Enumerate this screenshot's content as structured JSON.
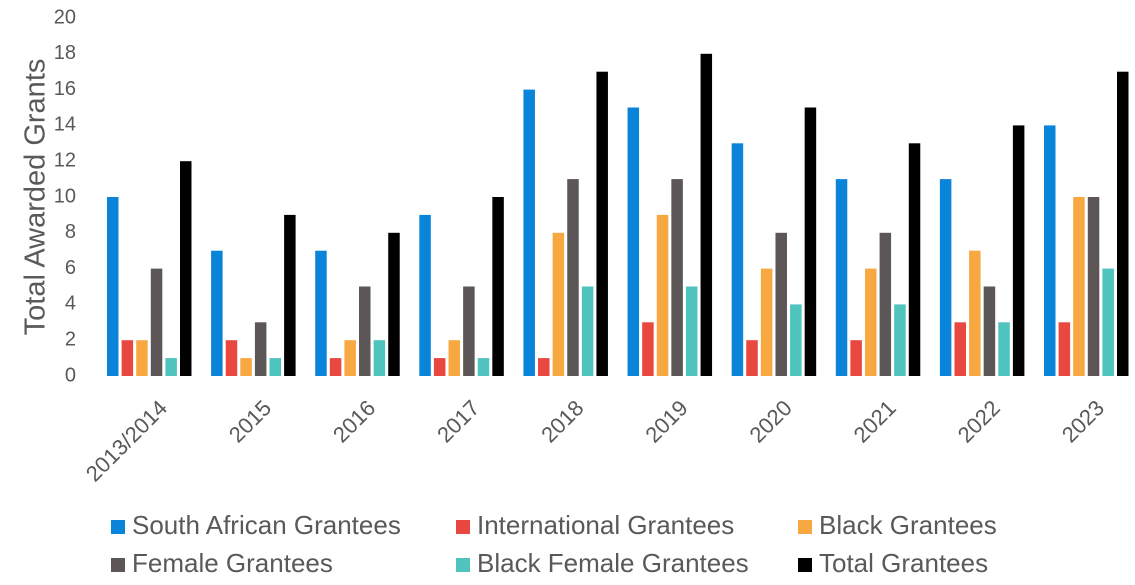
{
  "chart_data": {
    "type": "bar",
    "title": "",
    "xlabel": "",
    "ylabel": "Total Awarded Grants",
    "ylim": [
      0,
      20
    ],
    "yticks": [
      0,
      2,
      4,
      6,
      8,
      10,
      12,
      14,
      16,
      18,
      20
    ],
    "grid": false,
    "legend_position": "bottom",
    "categories": [
      "2013/2014",
      "2015",
      "2016",
      "2017",
      "2018",
      "2019",
      "2020",
      "2021",
      "2022",
      "2023"
    ],
    "series": [
      {
        "name": "South African Grantees",
        "color": "#0a84d9",
        "values": [
          10,
          7,
          7,
          9,
          16,
          15,
          13,
          11,
          11,
          14
        ]
      },
      {
        "name": "International Grantees",
        "color": "#e8483f",
        "values": [
          2,
          2,
          1,
          1,
          1,
          3,
          2,
          2,
          3,
          3
        ]
      },
      {
        "name": "Black Grantees",
        "color": "#f8a840",
        "values": [
          2,
          1,
          2,
          2,
          8,
          9,
          6,
          6,
          7,
          10
        ]
      },
      {
        "name": "Female Grantees",
        "color": "#5c5657",
        "values": [
          6,
          3,
          5,
          5,
          11,
          11,
          8,
          8,
          5,
          10
        ]
      },
      {
        "name": "Black Female Grantees",
        "color": "#4fc3bd",
        "values": [
          1,
          1,
          2,
          1,
          5,
          5,
          4,
          4,
          3,
          6
        ]
      },
      {
        "name": "Total Grantees",
        "color": "#000000",
        "values": [
          12,
          9,
          8,
          10,
          17,
          18,
          15,
          13,
          14,
          17
        ]
      }
    ]
  }
}
